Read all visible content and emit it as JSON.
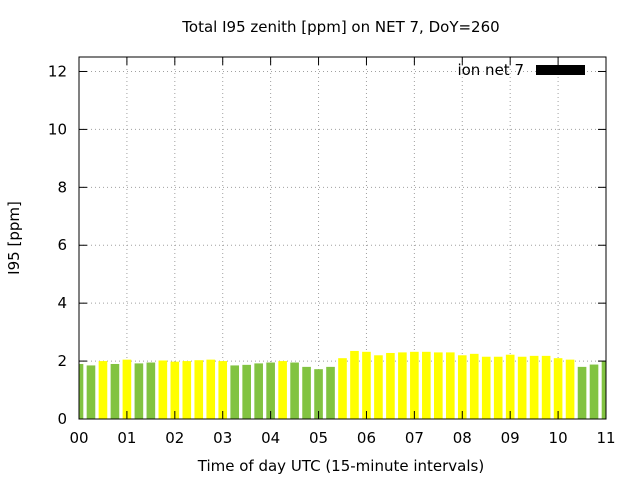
{
  "chart_data": {
    "type": "bar",
    "title": "Total I95 zenith [ppm] on NET 7, DoY=260",
    "xlabel": "Time of day UTC (15-minute intervals)",
    "ylabel": "I95 [ppm]",
    "xlim": [
      0,
      11
    ],
    "ylim": [
      0,
      12.5
    ],
    "x_ticks": [
      "00",
      "01",
      "02",
      "03",
      "04",
      "05",
      "06",
      "07",
      "08",
      "09",
      "10",
      "11"
    ],
    "y_ticks": [
      "0",
      "2",
      "4",
      "6",
      "8",
      "10",
      "12"
    ],
    "grid": true,
    "legend": {
      "label": "ion net 7",
      "placement": "top-right",
      "color": "#000000"
    },
    "colors": {
      "green": "#82c341",
      "yellow": "#ffff00"
    },
    "bar_interval_hours": 0.25,
    "values": [
      1.9,
      1.85,
      2.0,
      1.9,
      2.05,
      1.92,
      1.95,
      2.02,
      1.98,
      2.0,
      2.03,
      2.05,
      2.0,
      1.85,
      1.87,
      1.92,
      1.95,
      2.0,
      1.95,
      1.8,
      1.72,
      1.8,
      2.1,
      2.35,
      2.32,
      2.2,
      2.28,
      2.3,
      2.32,
      2.32,
      2.3,
      2.3,
      2.2,
      2.25,
      2.15,
      2.15,
      2.22,
      2.15,
      2.18,
      2.18,
      2.1,
      2.05,
      1.8,
      1.88,
      2.0
    ],
    "bar_colors": [
      "green",
      "green",
      "yellow",
      "green",
      "yellow",
      "green",
      "green",
      "yellow",
      "yellow",
      "yellow",
      "yellow",
      "yellow",
      "yellow",
      "green",
      "green",
      "green",
      "green",
      "yellow",
      "green",
      "green",
      "green",
      "green",
      "yellow",
      "yellow",
      "yellow",
      "yellow",
      "yellow",
      "yellow",
      "yellow",
      "yellow",
      "yellow",
      "yellow",
      "yellow",
      "yellow",
      "yellow",
      "yellow",
      "yellow",
      "yellow",
      "yellow",
      "yellow",
      "yellow",
      "yellow",
      "green",
      "green",
      "green"
    ]
  }
}
